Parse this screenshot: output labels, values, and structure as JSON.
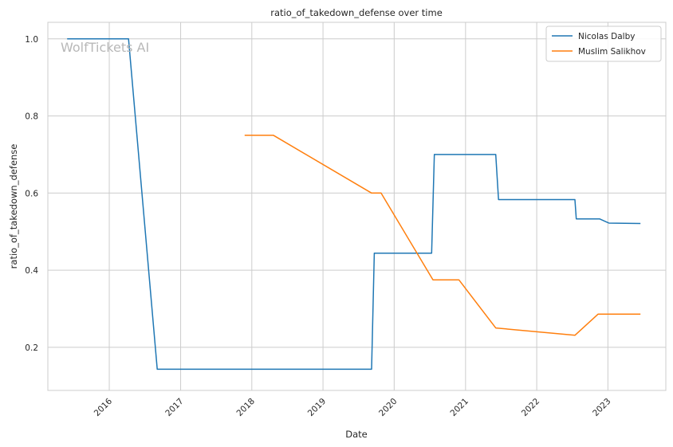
{
  "chart_data": {
    "type": "line",
    "title": "ratio_of_takedown_defense over time",
    "xlabel": "Date",
    "ylabel": "ratio_of_takedown_defense",
    "watermark": "WolfTickets AI",
    "grid": true,
    "legend_position": "top-right",
    "xlim": [
      "2015-02-20",
      "2023-10-25"
    ],
    "ylim": [
      0.088,
      1.043
    ],
    "x_ticks": [
      "2016",
      "2017",
      "2018",
      "2019",
      "2020",
      "2021",
      "2022",
      "2023"
    ],
    "y_ticks": [
      "0.2",
      "0.4",
      "0.6",
      "0.8",
      "1.0"
    ],
    "series": [
      {
        "name": "Nicolas Dalby",
        "color": "#1f77b4",
        "points": [
          [
            "2015-05-30",
            1.0
          ],
          [
            "2016-04-09",
            1.0
          ],
          [
            "2016-09-03",
            0.143
          ],
          [
            "2019-09-07",
            0.143
          ],
          [
            "2019-09-21",
            0.444
          ],
          [
            "2020-07-11",
            0.444
          ],
          [
            "2020-07-25",
            0.7
          ],
          [
            "2021-06-05",
            0.7
          ],
          [
            "2021-06-19",
            0.583
          ],
          [
            "2022-07-16",
            0.583
          ],
          [
            "2022-07-23",
            0.533
          ],
          [
            "2022-11-19",
            0.533
          ],
          [
            "2023-01-07",
            0.522
          ],
          [
            "2023-06-17",
            0.521
          ]
        ]
      },
      {
        "name": "Muslim Salikhov",
        "color": "#ff7f0e",
        "points": [
          [
            "2017-11-25",
            0.75
          ],
          [
            "2018-04-21",
            0.75
          ],
          [
            "2019-09-07",
            0.6
          ],
          [
            "2019-10-26",
            0.6
          ],
          [
            "2020-07-18",
            0.375
          ],
          [
            "2020-11-28",
            0.375
          ],
          [
            "2021-06-05",
            0.25
          ],
          [
            "2022-07-16",
            0.231
          ],
          [
            "2022-11-12",
            0.286
          ],
          [
            "2023-06-17",
            0.286
          ]
        ]
      }
    ]
  }
}
